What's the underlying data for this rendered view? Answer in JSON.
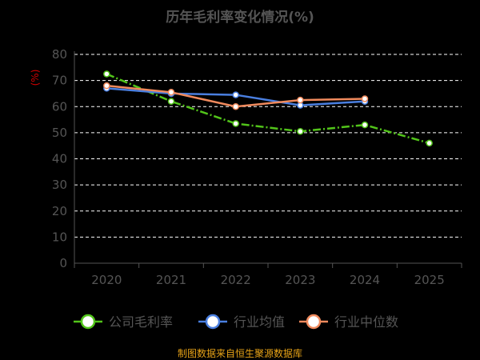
{
  "chart_data": {
    "type": "line",
    "title": "历年毛利率变化情况(%)",
    "unit_label": "(%)",
    "categories": [
      "2020",
      "2021",
      "2022",
      "2023",
      "2024",
      "2025"
    ],
    "y_ticks": [
      "0",
      "10",
      "20",
      "30",
      "40",
      "50",
      "60",
      "70",
      "80"
    ],
    "ylim": [
      0,
      80
    ],
    "grid": true,
    "legend_position": "bottom",
    "series": [
      {
        "name": "公司毛利率",
        "color": "#52c41a",
        "dash": "dashdot",
        "values": [
          72.5,
          62.0,
          53.5,
          50.5,
          53.0,
          46.0
        ]
      },
      {
        "name": "行业均值",
        "color": "#4a7fe0",
        "dash": "solid",
        "values": [
          67.0,
          65.0,
          64.5,
          60.5,
          62.0,
          null
        ]
      },
      {
        "name": "行业中位数",
        "color": "#f08a5d",
        "dash": "solid",
        "values": [
          68.0,
          65.5,
          60.0,
          62.5,
          63.0,
          null
        ]
      }
    ]
  },
  "footer": {
    "source": "制图数据来自恒生聚源数据库"
  }
}
